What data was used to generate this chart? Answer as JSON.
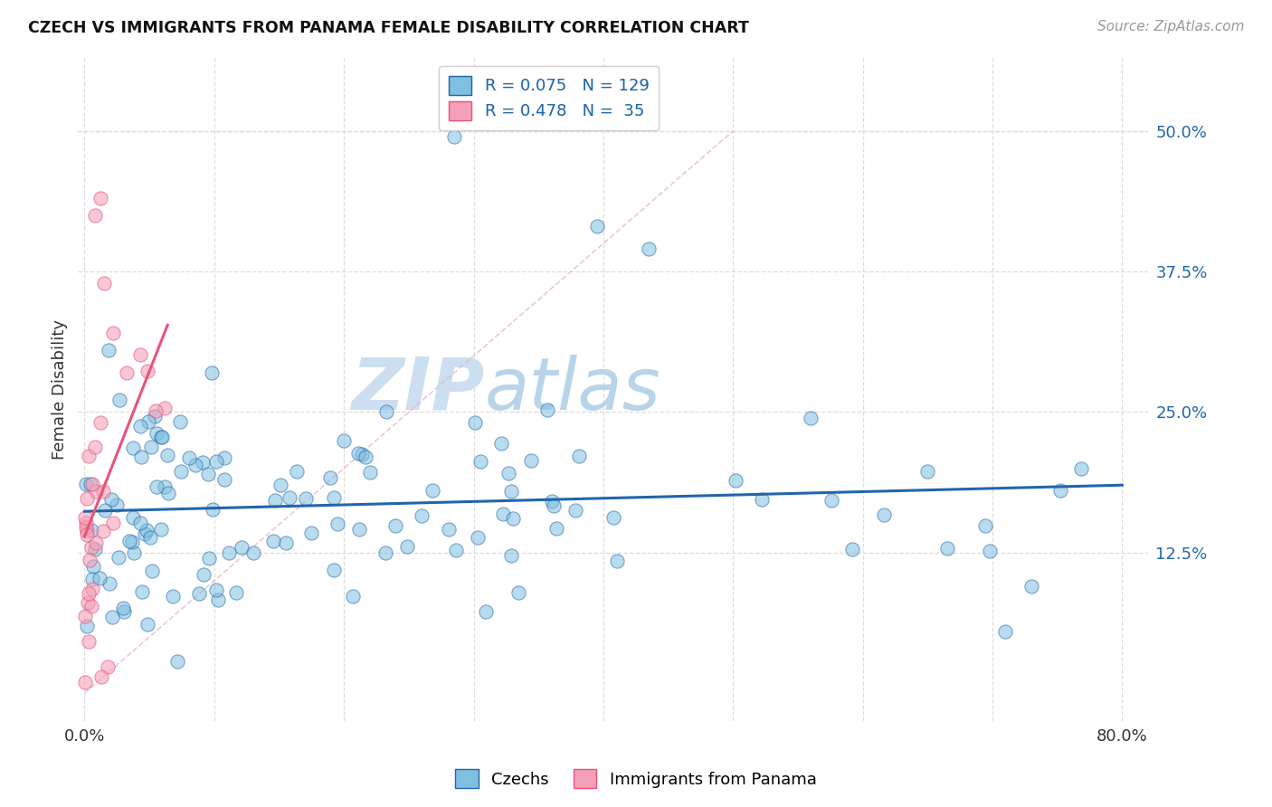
{
  "title": "CZECH VS IMMIGRANTS FROM PANAMA FEMALE DISABILITY CORRELATION CHART",
  "source": "Source: ZipAtlas.com",
  "ylabel": "Female Disability",
  "watermark_zip": "ZIP",
  "watermark_atlas": "atlas",
  "ytick_labels": [
    "12.5%",
    "25.0%",
    "37.5%",
    "50.0%"
  ],
  "ytick_values": [
    0.125,
    0.25,
    0.375,
    0.5
  ],
  "xlim": [
    0.0,
    0.8
  ],
  "ylim": [
    0.0,
    0.55
  ],
  "legend_czechs": "Czechs",
  "legend_panama": "Immigrants from Panama",
  "R_czechs": 0.075,
  "N_czechs": 129,
  "R_panama": 0.478,
  "N_panama": 35,
  "color_blue": "#7fbfdf",
  "color_pink": "#f4a0b8",
  "color_blue_dark": "#2166ac",
  "color_pink_dark": "#e8537a",
  "color_blue_text": "#2166ac",
  "background": "#ffffff",
  "grid_color": "#dddddd",
  "diag_color": "#e8b0c0"
}
